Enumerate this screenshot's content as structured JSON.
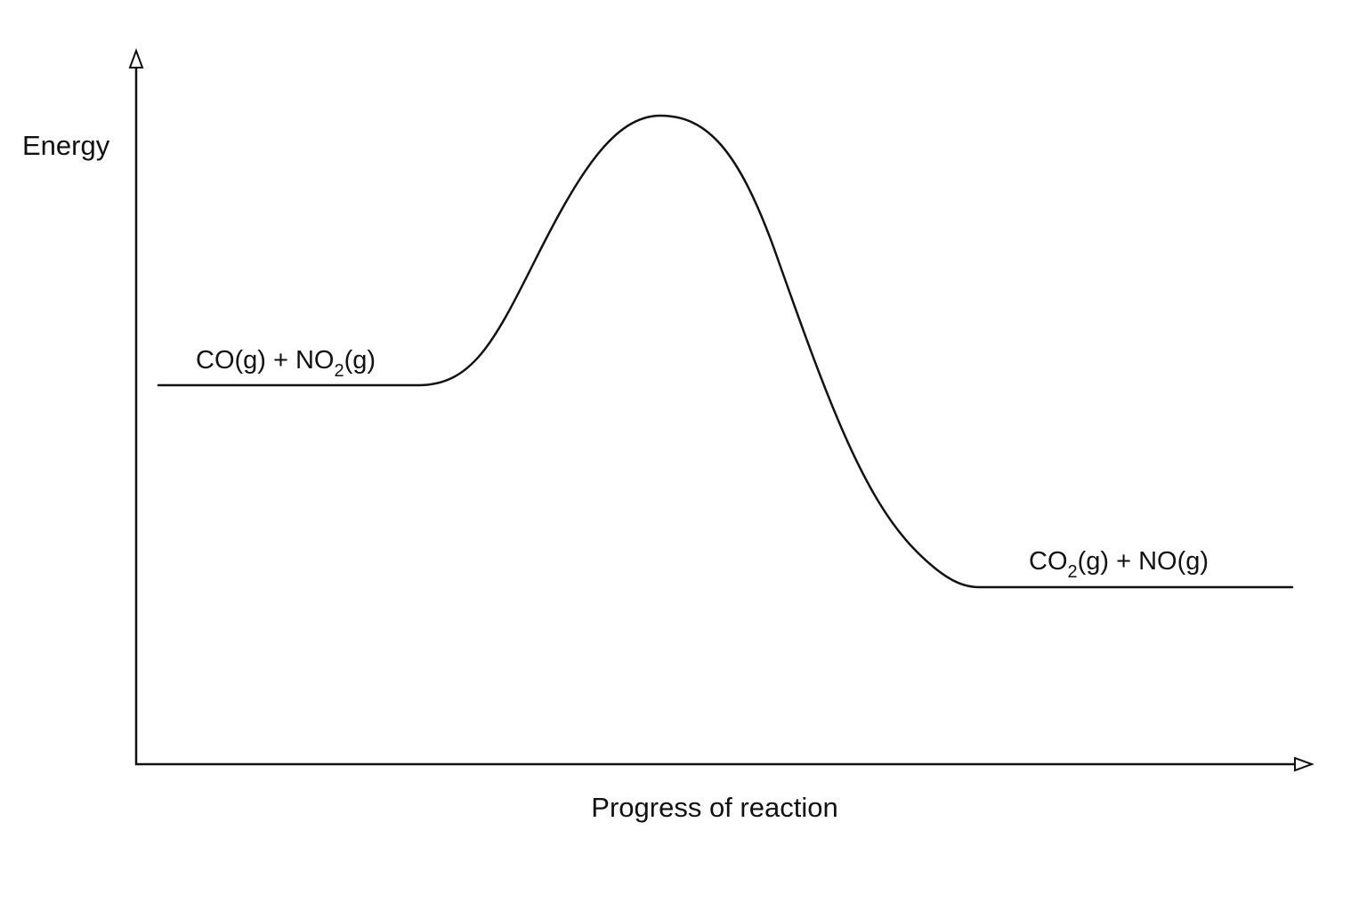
{
  "diagram": {
    "type": "energy-profile",
    "y_axis_label": "Energy",
    "x_axis_label": "Progress of reaction",
    "reactants": {
      "part1": "CO(g) + NO",
      "subscript": "2",
      "part2": "(g)"
    },
    "products": {
      "part1": "CO",
      "subscript": "2",
      "part2": "(g) + NO(g)"
    }
  }
}
